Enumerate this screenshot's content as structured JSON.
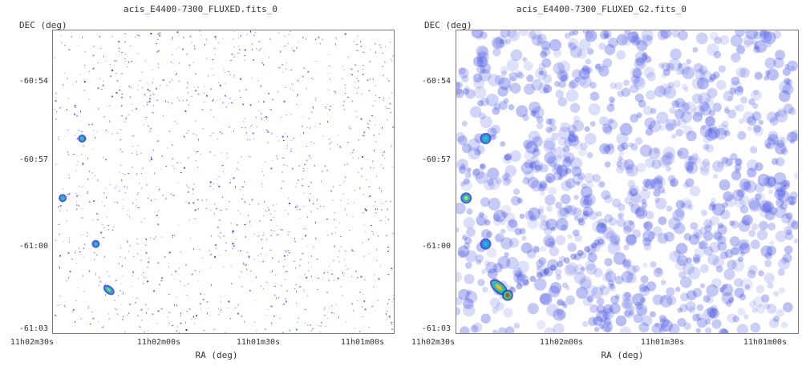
{
  "chart_data": [
    {
      "type": "heatmap",
      "title": "acis_E4400-7300_FLUXED.fits_0",
      "xlabel": "RA (deg)",
      "ylabel": "DEC (deg)",
      "x_ticks": [
        "11h02m30s",
        "11h02m00s",
        "11h01m30s",
        "11h01m00s"
      ],
      "y_ticks": [
        "-60:54",
        "-60:57",
        "-61:00",
        "-61:03"
      ],
      "x_range_seconds_of_RA": [
        152,
        82
      ],
      "y_range_arcmin_below_-60": [
        52,
        63.2
      ],
      "grid": false,
      "style": "sparse",
      "sources": [
        {
          "ra": 146,
          "dec": 56.0,
          "peak": 0.6,
          "elong": 1.0
        },
        {
          "ra": 150,
          "dec": 58.2,
          "peak": 0.6,
          "elong": 1.0
        },
        {
          "ra": 143.2,
          "dec": 59.9,
          "peak": 0.5,
          "elong": 1.0
        },
        {
          "ra": 140.5,
          "dec": 61.6,
          "peak": 0.7,
          "elong": 2.0
        }
      ]
    },
    {
      "type": "heatmap",
      "title": "acis_E4400-7300_FLUXED_G2.fits_0",
      "xlabel": "RA (deg)",
      "ylabel": "DEC (deg)",
      "x_ticks": [
        "11h02m30s",
        "11h02m00s",
        "11h01m30s",
        "11h01m00s"
      ],
      "y_ticks": [
        "-60:54",
        "-60:57",
        "-61:00",
        "-61:03"
      ],
      "x_range_seconds_of_RA": [
        152,
        82
      ],
      "y_range_arcmin_below_-60": [
        52,
        63.2
      ],
      "grid": false,
      "style": "smoothed",
      "sources": [
        {
          "ra": 150,
          "dec": 58.2,
          "peak": 0.75,
          "elong": 1.0
        },
        {
          "ra": 146,
          "dec": 56.0,
          "peak": 0.55,
          "elong": 1.0
        },
        {
          "ra": 146,
          "dec": 59.9,
          "peak": 0.45,
          "elong": 1.0
        },
        {
          "ra": 143.3,
          "dec": 61.5,
          "peak": 0.85,
          "elong": 2.2
        },
        {
          "ra": 141.5,
          "dec": 61.8,
          "peak": 1.0,
          "elong": 1.0
        }
      ]
    }
  ]
}
